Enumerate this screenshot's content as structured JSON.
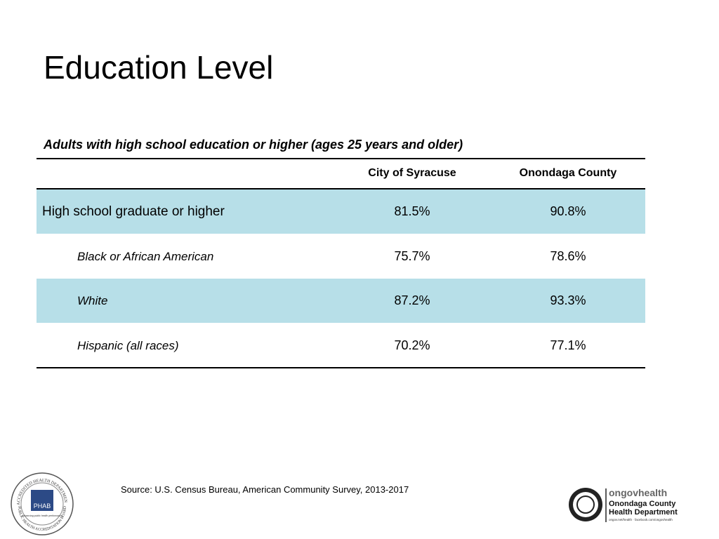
{
  "header": {
    "title": "Education Level"
  },
  "table": {
    "caption": "Adults with high school education or higher (ages 25 years and older)",
    "columns": [
      "City of Syracuse",
      "Onondaga County"
    ],
    "rows": [
      [
        "High school graduate or higher",
        "81.5%",
        "90.8%"
      ],
      [
        "Black or African American",
        "75.7%",
        "78.6%"
      ],
      [
        "White",
        "87.2%",
        "93.3%"
      ],
      [
        "Hispanic (all races)",
        "70.2%",
        "77.1%"
      ]
    ]
  },
  "footer": {
    "source": "Source: U.S. Census Bureau, American Community Survey, 2013-2017",
    "phab_logo": {
      "top_text": "ACCREDITED HEALTH DEPARTMENT",
      "bottom_text": "PUBLIC HEALTH ACCREDITATION BOARD",
      "name": "PHAB",
      "tagline": "Advancing public health performance"
    },
    "county_logo": {
      "brand": "ongovhealth",
      "line1": "Onondaga County",
      "line2": "Health Department",
      "url": "ongov.net/health · facebook.com/ongovhealth"
    }
  }
}
